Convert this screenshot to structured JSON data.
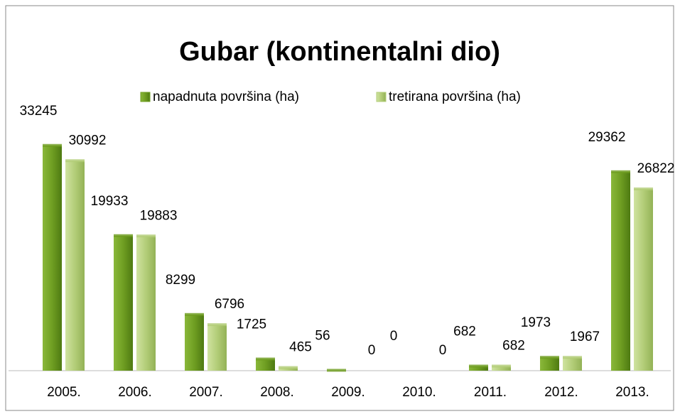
{
  "chart_data": {
    "type": "bar",
    "title": "Gubar (kontinentalni dio)",
    "categories": [
      "2005.",
      "2006.",
      "2007.",
      "2008.",
      "2009.",
      "2010.",
      "2011.",
      "2012.",
      "2013."
    ],
    "series": [
      {
        "name": "napadnuta površina (ha)",
        "color": "#6f9e22",
        "values": [
          33245,
          19933,
          8299,
          1725,
          56,
          0,
          682,
          1973,
          29362
        ]
      },
      {
        "name": "tretirana površina (ha)",
        "color": "#b3cd78",
        "values": [
          30992,
          19883,
          6796,
          465,
          0,
          0,
          682,
          1967,
          26822
        ]
      }
    ],
    "ylim": [
      0,
      35000
    ],
    "legend": "top"
  }
}
